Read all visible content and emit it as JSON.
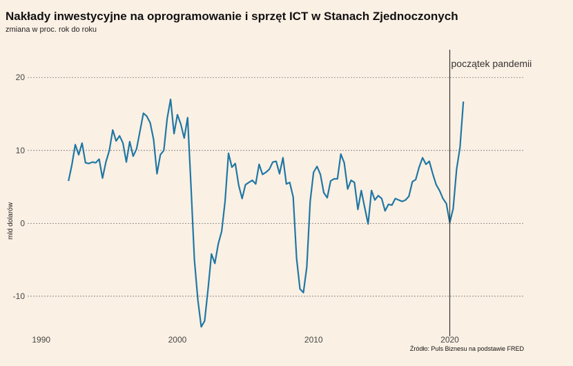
{
  "chart_data": {
    "type": "line",
    "title": "Nakłady inwestycyjne na oprogramowanie i sprzęt ICT w Stanach Zjednoczonych",
    "subtitle": "zmiana w proc. rok do roku",
    "ylabel": "mld dolarów",
    "xlabel": "",
    "xlim": [
      1989,
      2025.5
    ],
    "ylim": [
      -15.5,
      24
    ],
    "x_ticks": [
      1990,
      2000,
      2010,
      2020
    ],
    "y_ticks": [
      -10,
      0,
      10,
      20
    ],
    "grid": "horizontal dotted",
    "source": "Źródło: Puls Biznesu na podstawie FRED",
    "line_color": "#1f77a4",
    "annotation": {
      "x": 2020,
      "label": "początek pandemii"
    },
    "series": [
      {
        "x": [
          1992.0,
          1992.25,
          1992.5,
          1992.75,
          1993.0,
          1993.25,
          1993.5,
          1993.75,
          1994.0,
          1994.25,
          1994.5,
          1994.75,
          1995.0,
          1995.25,
          1995.5,
          1995.75,
          1996.0,
          1996.25,
          1996.5,
          1996.75,
          1997.0,
          1997.25,
          1997.5,
          1997.75,
          1998.0,
          1998.25,
          1998.5,
          1998.75,
          1999.0,
          1999.25,
          1999.5,
          1999.75,
          2000.0,
          2000.25,
          2000.5,
          2000.75,
          2001.0,
          2001.25,
          2001.5,
          2001.75,
          2002.0,
          2002.25,
          2002.5,
          2002.75,
          2003.0,
          2003.25,
          2003.5,
          2003.75,
          2004.0,
          2004.25,
          2004.5,
          2004.75,
          2005.0,
          2005.25,
          2005.5,
          2005.75,
          2006.0,
          2006.25,
          2006.5,
          2006.75,
          2007.0,
          2007.25,
          2007.5,
          2007.75,
          2008.0,
          2008.25,
          2008.5,
          2008.75,
          2009.0,
          2009.25,
          2009.5,
          2009.75,
          2010.0,
          2010.25,
          2010.5,
          2010.75,
          2011.0,
          2011.25,
          2011.5,
          2011.75,
          2012.0,
          2012.25,
          2012.5,
          2012.75,
          2013.0,
          2013.25,
          2013.5,
          2013.75,
          2014.0,
          2014.25,
          2014.5,
          2014.75,
          2015.0,
          2015.25,
          2015.5,
          2015.75,
          2016.0,
          2016.25,
          2016.5,
          2016.75,
          2017.0,
          2017.25,
          2017.5,
          2017.75,
          2018.0,
          2018.25,
          2018.5,
          2018.75,
          2019.0,
          2019.25,
          2019.5,
          2019.75,
          2020.0,
          2020.25,
          2020.5,
          2020.75,
          2021.0
        ],
        "values": [
          5.8,
          8.0,
          10.8,
          9.4,
          11.0,
          8.3,
          8.2,
          8.4,
          8.3,
          8.8,
          6.2,
          8.4,
          10.0,
          12.8,
          11.3,
          12.0,
          11.0,
          8.4,
          11.2,
          9.2,
          10.2,
          12.6,
          15.1,
          14.7,
          13.8,
          11.5,
          6.8,
          9.4,
          10.0,
          14.4,
          17.0,
          12.3,
          14.9,
          13.6,
          11.7,
          14.5,
          5.0,
          -5.0,
          -10.5,
          -14.2,
          -13.4,
          -9.0,
          -4.2,
          -5.5,
          -2.8,
          -1.1,
          3.0,
          9.6,
          7.7,
          8.2,
          5.2,
          3.4,
          5.3,
          5.6,
          5.9,
          5.4,
          8.1,
          6.7,
          7.0,
          7.4,
          8.4,
          8.5,
          6.8,
          9.0,
          5.4,
          5.6,
          3.6,
          -4.8,
          -9.0,
          -9.5,
          -6.0,
          3.0,
          7.0,
          7.8,
          6.7,
          4.2,
          3.5,
          5.8,
          6.1,
          6.1,
          9.5,
          8.3,
          4.7,
          5.9,
          5.6,
          1.9,
          4.5,
          2.2,
          -0.1,
          4.5,
          3.2,
          3.8,
          3.4,
          1.7,
          2.6,
          2.5,
          3.4,
          3.2,
          3.0,
          3.2,
          3.7,
          5.7,
          6.0,
          7.7,
          9.0,
          8.1,
          8.5,
          6.8,
          5.3,
          4.5,
          3.4,
          2.7,
          0.1,
          2.0,
          7.4,
          10.4,
          16.7
        ]
      }
    ]
  }
}
